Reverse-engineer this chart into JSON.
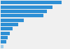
{
  "values": [
    195,
    165,
    148,
    138,
    75,
    55,
    38,
    30,
    22,
    17,
    8
  ],
  "bar_colors": [
    "#2d8fd5",
    "#2d8fd5",
    "#2d8fd5",
    "#2d8fd5",
    "#2d8fd5",
    "#2d8fd5",
    "#2d8fd5",
    "#2d8fd5",
    "#2d8fd5",
    "#2d8fd5",
    "#a0cce8"
  ],
  "background_color": "#f0f0f0",
  "grid_color": "#ffffff",
  "bar_height": 0.78,
  "xlim": [
    0,
    220
  ],
  "n_bars": 11
}
